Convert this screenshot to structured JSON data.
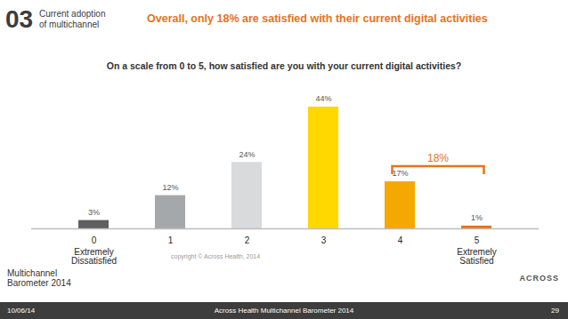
{
  "slide": {
    "section_number": "03",
    "section_label": "Current adoption of multichannel",
    "copyright": "copyright © Across Health, 2014",
    "logo": "Multichannel Barometer 2014",
    "brand": "ACROSS",
    "footer": {
      "date": "10/06/14",
      "source": "Across Health Multichannel Barometer 2014",
      "page": "29"
    }
  },
  "chart_data": {
    "type": "bar",
    "title": "Overall, only 18% are satisfied with their current digital activities",
    "subtitle": "On a scale from 0 to 5, how satisfied are you with your current digital activities?",
    "categories": [
      "0",
      "1",
      "2",
      "3",
      "4",
      "5"
    ],
    "scale_labels": [
      "Extremely Dissatisfied",
      null,
      null,
      null,
      null,
      "Extremely Satisfied"
    ],
    "values": [
      3,
      12,
      24,
      44,
      17,
      1
    ],
    "value_labels": [
      "3%",
      "12%",
      "24%",
      "44%",
      "17%",
      "1%"
    ],
    "colors": [
      "#5f5f5f",
      "#a5a8ab",
      "#d9dadb",
      "#ffd800",
      "#f5a800",
      "#e8731a"
    ],
    "data_labels": true,
    "tick_labels": "x",
    "bracket": {
      "label": "18%",
      "categories": [
        "4",
        "5"
      ],
      "color": "#e8731a"
    }
  }
}
